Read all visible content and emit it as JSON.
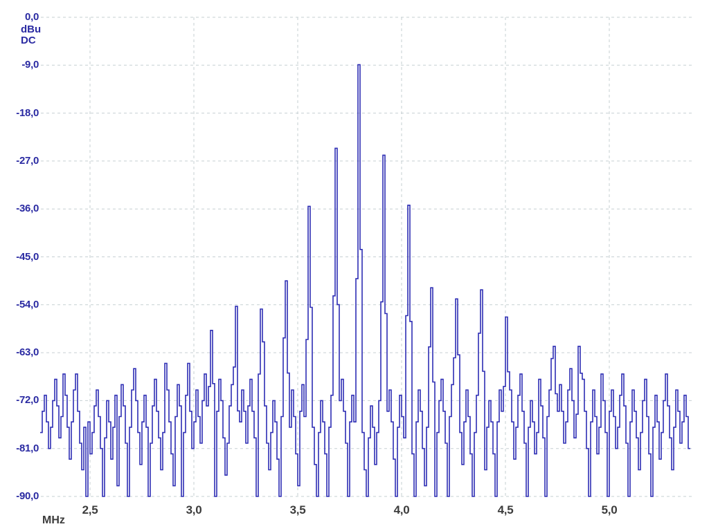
{
  "chart_data": {
    "type": "line",
    "description": "Spectrum analyzer frequency-domain trace",
    "grid": "dashed",
    "legend": "none",
    "xlim": [
      2.26,
      5.38
    ],
    "ylim": [
      -90,
      0
    ],
    "x_axis": {
      "unit": "MHz",
      "tick_labels": [
        "2,5",
        "3,0",
        "3,5",
        "4,0",
        "4,5",
        "5,0"
      ],
      "tick_values": [
        2.5,
        3.0,
        3.5,
        4.0,
        4.5,
        5.0
      ]
    },
    "y_axis": {
      "unit": "dBu",
      "coupling": "DC",
      "tick_labels": [
        "0,0",
        "-9,0",
        "-18,0",
        "-27,0",
        "-36,0",
        "-45,0",
        "-54,0",
        "-63,0",
        "-72,0",
        "-81,0",
        "-90,0"
      ],
      "tick_values": [
        0,
        -9,
        -18,
        -27,
        -36,
        -45,
        -54,
        -63,
        -72,
        -81,
        -90
      ]
    },
    "peaks_mhz_dbu": [
      {
        "f": 3.08,
        "dbu": -58.8
      },
      {
        "f": 3.2,
        "dbu": -54.3
      },
      {
        "f": 3.32,
        "dbu": -54.8
      },
      {
        "f": 3.44,
        "dbu": -49.5
      },
      {
        "f": 3.55,
        "dbu": -35.5
      },
      {
        "f": 3.68,
        "dbu": -24.6
      },
      {
        "f": 3.79,
        "dbu": -8.9
      },
      {
        "f": 3.91,
        "dbu": -25.9
      },
      {
        "f": 4.03,
        "dbu": -35.3
      },
      {
        "f": 4.14,
        "dbu": -50.8
      },
      {
        "f": 4.26,
        "dbu": -52.9
      },
      {
        "f": 4.38,
        "dbu": -51.2
      },
      {
        "f": 4.5,
        "dbu": -56.3
      },
      {
        "f": 4.73,
        "dbu": -61.8
      },
      {
        "f": 4.85,
        "dbu": -61.8
      }
    ],
    "trace": {
      "f_start": 2.26,
      "f_step": 0.01,
      "noise_dbu": [
        -78,
        -74,
        -71,
        -76,
        -81,
        -77,
        -72,
        -68,
        -73,
        -79,
        -75,
        -67,
        -71,
        -77,
        -83,
        -76,
        -70,
        -67,
        -74,
        -80,
        -85,
        -77,
        -90,
        -76,
        -82,
        -78,
        -73,
        -70,
        -75,
        -81,
        -90,
        -79,
        -72,
        -76,
        -83,
        -77,
        -71,
        -88,
        -75,
        -69,
        -73,
        -80,
        -90,
        -77,
        -70,
        -66,
        -72,
        -78,
        -84,
        -76,
        -71,
        -77,
        -90,
        -80,
        -73,
        -68,
        -74,
        -79,
        -85,
        -78,
        -65,
        -70,
        -76,
        -82,
        -88,
        -75,
        -69,
        -73,
        -90,
        -78,
        -71,
        -65,
        -74,
        -81,
        -76,
        -70,
        -75,
        -80,
        -72,
        -67,
        -73,
        -78,
        -84,
        -77,
        -90,
        -74,
        -68,
        -72,
        -79,
        -86,
        -80,
        -73,
        -69,
        -75,
        -82,
        -90,
        -76,
        -70,
        -74,
        -80,
        -73,
        -68,
        -74,
        -79,
        -90,
        -77,
        -71,
        -66,
        -73,
        -80,
        -85,
        -78,
        -72,
        -76,
        -83,
        -90,
        -75,
        -69,
        -74,
        -81,
        -77,
        -70,
        -75,
        -82,
        -88,
        -74,
        -69,
        -75,
        -81,
        -76,
        -70,
        -77,
        -84,
        -90,
        -78,
        -72,
        -76,
        -82,
        -90,
        -77,
        -71,
        -75,
        -83,
        -78,
        -72,
        -68,
        -74,
        -80,
        -90,
        -76,
        -71,
        -76,
        -82,
        -77,
        -72,
        -78,
        -85,
        -90,
        -79,
        -73,
        -77,
        -84,
        -78,
        -72,
        -76,
        -90,
        -80,
        -74,
        -70,
        -76,
        -83,
        -90,
        -77,
        -71,
        -75,
        -79,
        -73,
        -68,
        -75,
        -82,
        -90,
        -76,
        -70,
        -74,
        -81,
        -88,
        -77,
        -71,
        -76,
        -83,
        -90,
        -78,
        -72,
        -68,
        -74,
        -80,
        -90,
        -75,
        -69,
        -73,
        -77,
        -72,
        -78,
        -84,
        -76,
        -70,
        -75,
        -82,
        -90,
        -78,
        -71,
        -66,
        -73,
        -79,
        -85,
        -77,
        -72,
        -76,
        -82,
        -90,
        -76,
        -70,
        -74,
        -80,
        -87,
        -75,
        -70,
        -76,
        -83,
        -77,
        -71,
        -67,
        -74,
        -80,
        -90,
        -77,
        -72,
        -76,
        -82,
        -78,
        -68,
        -73,
        -79,
        -90,
        -75,
        -70,
        -66,
        -72,
        -78,
        -74,
        -69,
        -74,
        -80,
        -76,
        -70,
        -66,
        -72,
        -79,
        -85,
        -77,
        -71,
        -68,
        -74,
        -81,
        -90,
        -76,
        -70,
        -75,
        -82,
        -77,
        -67,
        -72,
        -78,
        -90,
        -74,
        -70,
        -75,
        -81,
        -77,
        -71,
        -67,
        -73,
        -80,
        -90,
        -76,
        -70,
        -74,
        -79,
        -85,
        -78,
        -72,
        -68,
        -75,
        -82,
        -90,
        -77,
        -71,
        -76,
        -83,
        -78,
        -72,
        -67,
        -73,
        -79,
        -85,
        -77,
        -70,
        -74,
        -80,
        -76,
        -71,
        -75,
        -81
      ]
    },
    "colors": {
      "background": "#ffffff",
      "trace": "#2d2db4",
      "grid": "#c6cfd2",
      "y_label": "#2a2aa2",
      "x_label": "#3c3c3c"
    }
  }
}
